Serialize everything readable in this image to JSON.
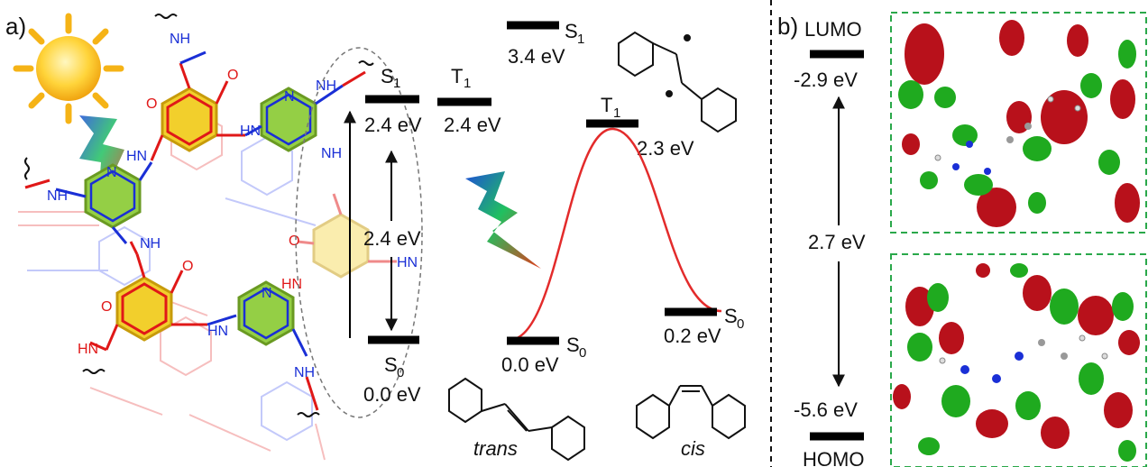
{
  "panel_a": {
    "label": "a)",
    "left_diagram": {
      "S1": {
        "letter": "S",
        "sub": "1",
        "value": "2.4 eV"
      },
      "T1": {
        "letter": "T",
        "sub": "1",
        "value": "2.4 eV"
      },
      "gap": "2.4 eV",
      "S0": {
        "letter": "S",
        "sub": "0",
        "value": "0.0 eV"
      }
    },
    "right_diagram": {
      "S1": {
        "letter": "S",
        "sub": "1",
        "value": "3.4 eV"
      },
      "T1": {
        "letter": "T",
        "sub": "1",
        "value": "2.3 eV"
      },
      "S0_trans": {
        "letter": "S",
        "sub": "0",
        "value": "0.0 eV"
      },
      "S0_cis": {
        "letter": "S",
        "sub": "0",
        "value": "0.2 eV"
      },
      "trans_label": "trans",
      "cis_label": "cis"
    },
    "colors": {
      "curve": "#e32b2b",
      "ring": "#e8c21a",
      "triazine": "#8ecb3b",
      "amine": "#1a2fd6",
      "carbonyl": "#e01818"
    }
  },
  "panel_b": {
    "label": "b)",
    "lumo_label": "LUMO",
    "lumo_value": "-2.9 eV",
    "gap": "2.7 eV",
    "homo_value": "-5.6 eV",
    "homo_label": "HOMO",
    "colors": {
      "lobe_positive": "#1faa1f",
      "lobe_negative": "#b8111b",
      "frame": "#2aa84a"
    }
  },
  "molecule_labels": {
    "nh": "NH",
    "hn": "HN",
    "o": "O",
    "n": "N"
  }
}
